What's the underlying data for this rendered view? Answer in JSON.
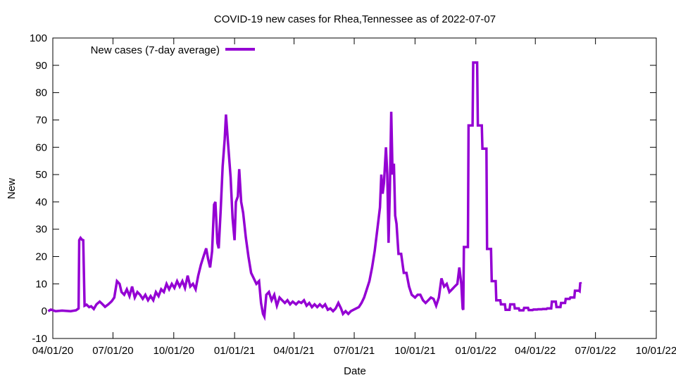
{
  "chart_data": {
    "type": "line",
    "title": "COVID-19 new cases for Rhea,Tennessee as of 2022-07-07",
    "xlabel": "Date",
    "ylabel": "New",
    "ylim": [
      -10,
      100
    ],
    "xlim": [
      "2020-04-01",
      "2022-10-01"
    ],
    "yticks": [
      -10,
      0,
      10,
      20,
      30,
      40,
      50,
      60,
      70,
      80,
      90,
      100
    ],
    "xticks": [
      {
        "date": "2020-04-01",
        "label": "04/01/20"
      },
      {
        "date": "2020-07-01",
        "label": "07/01/20"
      },
      {
        "date": "2020-10-01",
        "label": "10/01/20"
      },
      {
        "date": "2021-01-01",
        "label": "01/01/21"
      },
      {
        "date": "2021-04-01",
        "label": "04/01/21"
      },
      {
        "date": "2021-07-01",
        "label": "07/01/21"
      },
      {
        "date": "2021-10-01",
        "label": "10/01/21"
      },
      {
        "date": "2022-01-01",
        "label": "01/01/22"
      },
      {
        "date": "2022-04-01",
        "label": "04/01/22"
      },
      {
        "date": "2022-07-01",
        "label": "07/01/22"
      },
      {
        "date": "2022-10-01",
        "label": "10/01/22"
      }
    ],
    "grid": false,
    "legend_position": "top-left",
    "series": [
      {
        "name": "New cases (7-day average)",
        "color": "#9400d3",
        "points": [
          [
            "2020-03-25",
            0
          ],
          [
            "2020-03-29",
            0.6
          ],
          [
            "2020-04-05",
            0
          ],
          [
            "2020-04-15",
            0.2
          ],
          [
            "2020-04-28",
            0
          ],
          [
            "2020-05-06",
            0.3
          ],
          [
            "2020-05-10",
            1
          ],
          [
            "2020-05-11",
            26
          ],
          [
            "2020-05-13",
            26.8
          ],
          [
            "2020-05-15",
            26.2
          ],
          [
            "2020-05-17",
            26
          ],
          [
            "2020-05-19",
            2
          ],
          [
            "2020-05-22",
            2.4
          ],
          [
            "2020-05-26",
            1.5
          ],
          [
            "2020-05-29",
            1.8
          ],
          [
            "2020-06-02",
            0.8
          ],
          [
            "2020-06-06",
            2.5
          ],
          [
            "2020-06-11",
            3.5
          ],
          [
            "2020-06-15",
            2.6
          ],
          [
            "2020-06-19",
            1.6
          ],
          [
            "2020-06-24",
            2.5
          ],
          [
            "2020-06-29",
            3.6
          ],
          [
            "2020-07-03",
            5
          ],
          [
            "2020-07-07",
            11
          ],
          [
            "2020-07-11",
            10
          ],
          [
            "2020-07-14",
            7
          ],
          [
            "2020-07-18",
            6
          ],
          [
            "2020-07-22",
            8
          ],
          [
            "2020-07-26",
            5.5
          ],
          [
            "2020-07-30",
            9
          ],
          [
            "2020-08-03",
            5
          ],
          [
            "2020-08-07",
            7
          ],
          [
            "2020-08-11",
            6
          ],
          [
            "2020-08-15",
            4.5
          ],
          [
            "2020-08-19",
            6
          ],
          [
            "2020-08-23",
            4
          ],
          [
            "2020-08-27",
            5.5
          ],
          [
            "2020-08-31",
            4
          ],
          [
            "2020-09-04",
            7
          ],
          [
            "2020-09-08",
            5.5
          ],
          [
            "2020-09-12",
            8
          ],
          [
            "2020-09-16",
            7
          ],
          [
            "2020-09-20",
            10
          ],
          [
            "2020-09-24",
            8
          ],
          [
            "2020-09-28",
            10
          ],
          [
            "2020-10-02",
            8.5
          ],
          [
            "2020-10-06",
            11
          ],
          [
            "2020-10-10",
            9
          ],
          [
            "2020-10-14",
            11
          ],
          [
            "2020-10-18",
            8.5
          ],
          [
            "2020-10-22",
            13
          ],
          [
            "2020-10-26",
            9
          ],
          [
            "2020-10-30",
            10
          ],
          [
            "2020-11-03",
            8
          ],
          [
            "2020-11-07",
            13
          ],
          [
            "2020-11-11",
            17
          ],
          [
            "2020-11-15",
            20
          ],
          [
            "2020-11-19",
            23
          ],
          [
            "2020-11-22",
            19
          ],
          [
            "2020-11-25",
            16
          ],
          [
            "2020-11-28",
            22
          ],
          [
            "2020-12-01",
            39
          ],
          [
            "2020-12-03",
            40
          ],
          [
            "2020-12-06",
            25
          ],
          [
            "2020-12-08",
            23
          ],
          [
            "2020-12-11",
            37
          ],
          [
            "2020-12-14",
            53
          ],
          [
            "2020-12-17",
            63
          ],
          [
            "2020-12-19",
            72
          ],
          [
            "2020-12-22",
            62
          ],
          [
            "2020-12-26",
            49
          ],
          [
            "2020-12-29",
            34
          ],
          [
            "2021-01-01",
            26
          ],
          [
            "2021-01-03",
            40
          ],
          [
            "2021-01-06",
            42
          ],
          [
            "2021-01-08",
            52
          ],
          [
            "2021-01-11",
            40
          ],
          [
            "2021-01-14",
            36
          ],
          [
            "2021-01-18",
            27
          ],
          [
            "2021-01-22",
            20
          ],
          [
            "2021-01-26",
            14
          ],
          [
            "2021-01-30",
            12
          ],
          [
            "2021-02-03",
            10
          ],
          [
            "2021-02-07",
            11
          ],
          [
            "2021-02-10",
            3
          ],
          [
            "2021-02-13",
            -1
          ],
          [
            "2021-02-15",
            -2
          ],
          [
            "2021-02-18",
            6
          ],
          [
            "2021-02-22",
            7
          ],
          [
            "2021-02-26",
            4
          ],
          [
            "2021-03-02",
            6
          ],
          [
            "2021-03-06",
            2
          ],
          [
            "2021-03-10",
            5
          ],
          [
            "2021-03-14",
            4
          ],
          [
            "2021-03-18",
            3
          ],
          [
            "2021-03-22",
            4
          ],
          [
            "2021-03-26",
            2.5
          ],
          [
            "2021-03-30",
            3.5
          ],
          [
            "2021-04-04",
            2.5
          ],
          [
            "2021-04-08",
            3.5
          ],
          [
            "2021-04-12",
            3
          ],
          [
            "2021-04-16",
            4
          ],
          [
            "2021-04-20",
            2
          ],
          [
            "2021-04-24",
            3
          ],
          [
            "2021-04-28",
            1.5
          ],
          [
            "2021-05-02",
            2.5
          ],
          [
            "2021-05-06",
            1.5
          ],
          [
            "2021-05-10",
            2.5
          ],
          [
            "2021-05-14",
            1.5
          ],
          [
            "2021-05-18",
            2.5
          ],
          [
            "2021-05-22",
            0.5
          ],
          [
            "2021-05-26",
            1
          ],
          [
            "2021-05-30",
            0
          ],
          [
            "2021-06-03",
            1
          ],
          [
            "2021-06-07",
            3
          ],
          [
            "2021-06-11",
            1
          ],
          [
            "2021-06-14",
            -1
          ],
          [
            "2021-06-18",
            0
          ],
          [
            "2021-06-22",
            -1
          ],
          [
            "2021-06-26",
            0
          ],
          [
            "2021-06-30",
            0.5
          ],
          [
            "2021-07-04",
            1
          ],
          [
            "2021-07-08",
            1.5
          ],
          [
            "2021-07-12",
            3
          ],
          [
            "2021-07-16",
            5
          ],
          [
            "2021-07-20",
            8
          ],
          [
            "2021-07-24",
            11
          ],
          [
            "2021-07-28",
            16
          ],
          [
            "2021-08-01",
            22
          ],
          [
            "2021-08-05",
            30
          ],
          [
            "2021-08-09",
            38
          ],
          [
            "2021-08-11",
            50
          ],
          [
            "2021-08-13",
            43
          ],
          [
            "2021-08-15",
            47
          ],
          [
            "2021-08-18",
            60
          ],
          [
            "2021-08-20",
            50
          ],
          [
            "2021-08-22",
            25
          ],
          [
            "2021-08-24",
            45
          ],
          [
            "2021-08-26",
            73
          ],
          [
            "2021-08-28",
            50
          ],
          [
            "2021-08-30",
            54
          ],
          [
            "2021-09-01",
            35
          ],
          [
            "2021-09-03",
            32
          ],
          [
            "2021-09-06",
            21
          ],
          [
            "2021-09-10",
            21
          ],
          [
            "2021-09-14",
            14
          ],
          [
            "2021-09-18",
            14
          ],
          [
            "2021-09-22",
            9
          ],
          [
            "2021-09-26",
            6
          ],
          [
            "2021-10-01",
            5
          ],
          [
            "2021-10-05",
            6
          ],
          [
            "2021-10-09",
            6
          ],
          [
            "2021-10-13",
            4
          ],
          [
            "2021-10-17",
            3
          ],
          [
            "2021-10-21",
            4
          ],
          [
            "2021-10-25",
            5
          ],
          [
            "2021-10-29",
            4.5
          ],
          [
            "2021-11-02",
            2
          ],
          [
            "2021-11-06",
            5
          ],
          [
            "2021-11-10",
            12
          ],
          [
            "2021-11-14",
            9
          ],
          [
            "2021-11-18",
            10
          ],
          [
            "2021-11-22",
            7
          ],
          [
            "2021-11-26",
            8
          ],
          [
            "2021-11-30",
            9
          ],
          [
            "2021-12-04",
            10
          ],
          [
            "2021-12-07",
            16
          ],
          [
            "2021-12-10",
            10
          ],
          [
            "2021-12-12",
            1
          ],
          [
            "2021-12-13",
            0.5
          ],
          [
            "2021-12-14",
            23.5
          ],
          [
            "2021-12-20",
            23.5
          ],
          [
            "2021-12-21",
            68
          ],
          [
            "2021-12-27",
            68
          ],
          [
            "2021-12-28",
            91
          ],
          [
            "2022-01-03",
            91
          ],
          [
            "2022-01-04",
            68
          ],
          [
            "2022-01-10",
            68
          ],
          [
            "2022-01-11",
            59.5
          ],
          [
            "2022-01-17",
            59.5
          ],
          [
            "2022-01-18",
            22.8
          ],
          [
            "2022-01-24",
            22.8
          ],
          [
            "2022-01-25",
            11
          ],
          [
            "2022-01-31",
            11
          ],
          [
            "2022-02-01",
            4
          ],
          [
            "2022-02-07",
            4
          ],
          [
            "2022-02-08",
            2.5
          ],
          [
            "2022-02-14",
            2.5
          ],
          [
            "2022-02-15",
            0.5
          ],
          [
            "2022-02-21",
            0.5
          ],
          [
            "2022-02-22",
            2.5
          ],
          [
            "2022-02-28",
            2.5
          ],
          [
            "2022-03-01",
            1
          ],
          [
            "2022-03-07",
            1
          ],
          [
            "2022-03-08",
            0.3
          ],
          [
            "2022-03-14",
            0.3
          ],
          [
            "2022-03-15",
            1.2
          ],
          [
            "2022-03-21",
            1.2
          ],
          [
            "2022-03-22",
            0.4
          ],
          [
            "2022-03-28",
            0.4
          ],
          [
            "2022-03-29",
            0.6
          ],
          [
            "2022-04-04",
            0.6
          ],
          [
            "2022-04-05",
            0.7
          ],
          [
            "2022-04-11",
            0.7
          ],
          [
            "2022-04-12",
            0.8
          ],
          [
            "2022-04-18",
            0.8
          ],
          [
            "2022-04-19",
            1
          ],
          [
            "2022-04-25",
            1
          ],
          [
            "2022-04-26",
            3.5
          ],
          [
            "2022-05-02",
            3.5
          ],
          [
            "2022-05-03",
            1.5
          ],
          [
            "2022-05-09",
            1.5
          ],
          [
            "2022-05-10",
            3
          ],
          [
            "2022-05-16",
            3
          ],
          [
            "2022-05-17",
            4.5
          ],
          [
            "2022-05-23",
            4.5
          ],
          [
            "2022-05-24",
            5
          ],
          [
            "2022-05-30",
            5
          ],
          [
            "2022-05-31",
            7.5
          ],
          [
            "2022-06-06",
            7.5
          ],
          [
            "2022-06-07",
            7.3
          ],
          [
            "2022-06-08",
            10.5
          ],
          [
            "2022-06-09",
            10
          ]
        ]
      }
    ]
  }
}
